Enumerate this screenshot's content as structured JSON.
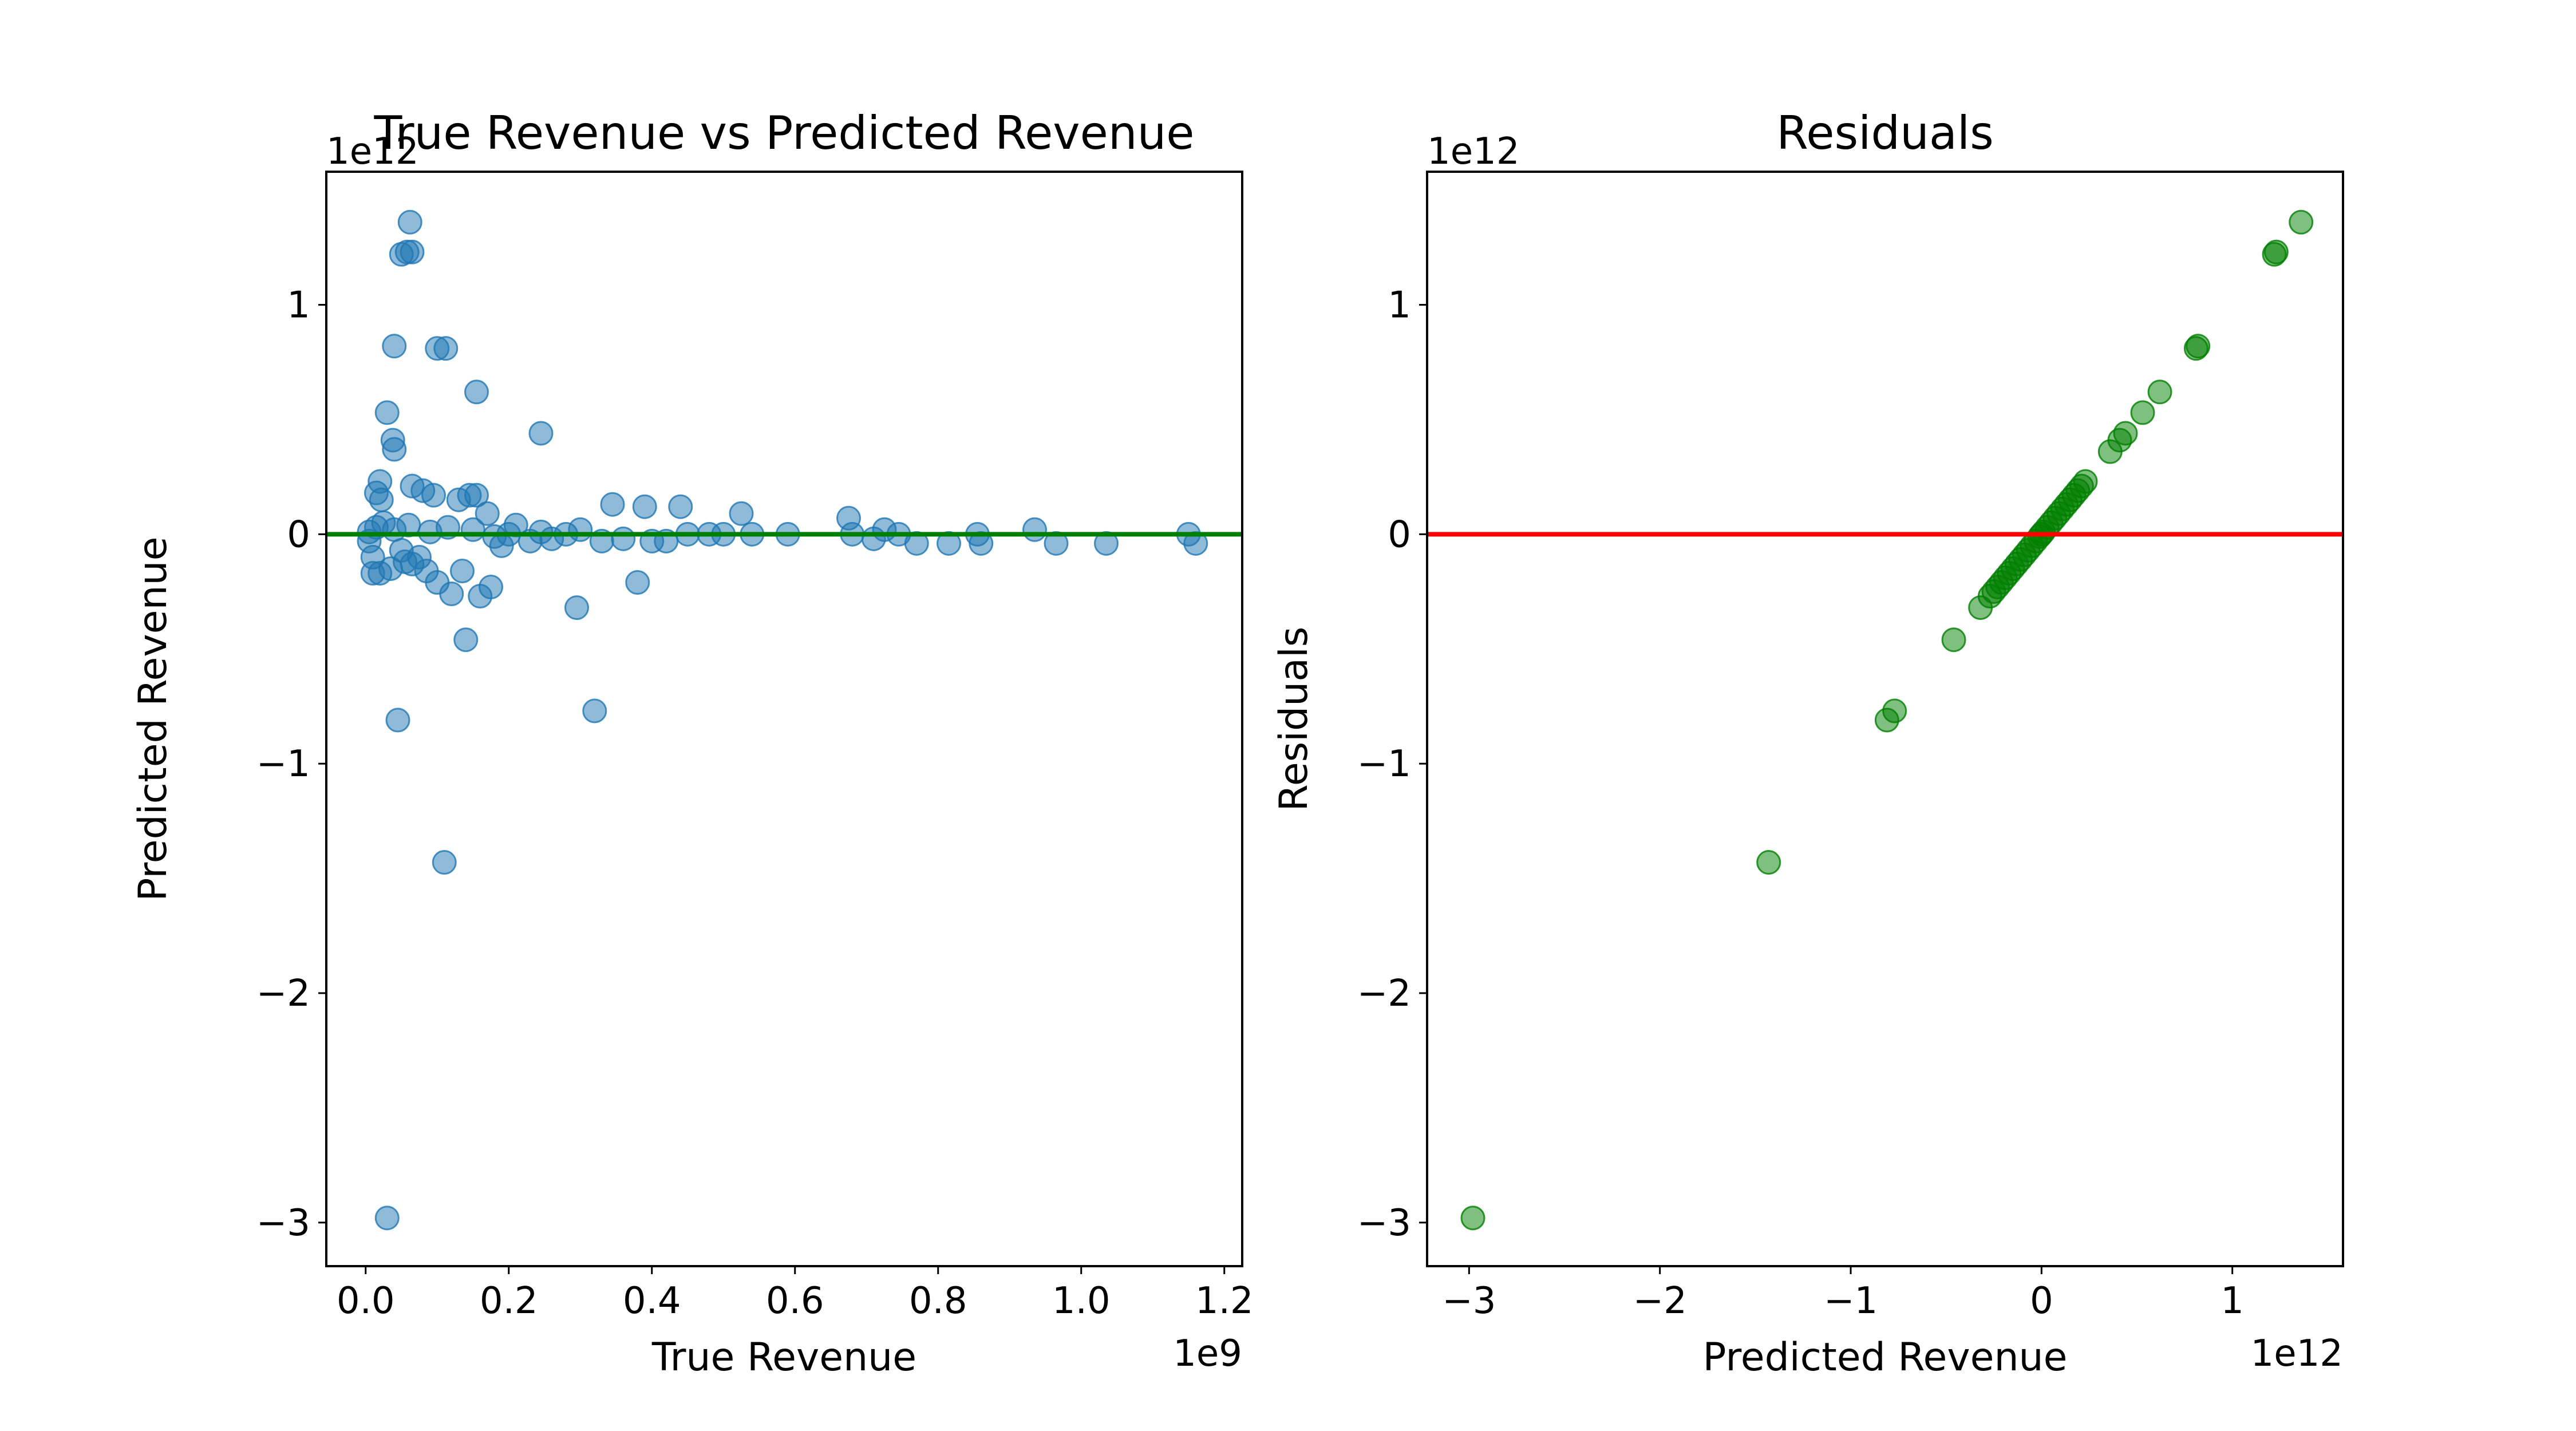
{
  "chart_data": [
    {
      "type": "scatter",
      "title": "True Revenue vs Predicted Revenue",
      "xlabel": "True Revenue",
      "ylabel": "Predicted Revenue",
      "x_offset_label": "1e9",
      "y_offset_label": "1e12",
      "xlim": [
        -0.055,
        1.225
      ],
      "ylim": [
        -3.19,
        1.58
      ],
      "x_ticks": [
        0.0,
        0.2,
        0.4,
        0.6,
        0.8,
        1.0,
        1.2
      ],
      "x_tick_labels": [
        "0.0",
        "0.2",
        "0.4",
        "0.6",
        "0.8",
        "1.0",
        "1.2"
      ],
      "y_ticks": [
        -3,
        -2,
        -1,
        0,
        1
      ],
      "y_tick_labels": [
        "−3",
        "−2",
        "−1",
        "0",
        "1"
      ],
      "marker_color": "#1f77b4",
      "marker_alpha": 0.5,
      "reference_line": {
        "y": 0,
        "color": "#008000"
      },
      "series": [
        {
          "points": [
            [
              0.03,
              -2.98
            ],
            [
              0.11,
              -1.43
            ],
            [
              0.045,
              -0.81
            ],
            [
              0.32,
              -0.77
            ],
            [
              0.14,
              -0.46
            ],
            [
              0.295,
              -0.32
            ],
            [
              0.12,
              -0.26
            ],
            [
              0.16,
              -0.27
            ],
            [
              0.175,
              -0.23
            ],
            [
              0.1,
              -0.21
            ],
            [
              0.38,
              -0.21
            ],
            [
              0.085,
              -0.16
            ],
            [
              0.135,
              -0.16
            ],
            [
              0.01,
              -0.17
            ],
            [
              0.02,
              -0.17
            ],
            [
              0.035,
              -0.15
            ],
            [
              0.055,
              -0.12
            ],
            [
              0.075,
              -0.1
            ],
            [
              0.19,
              -0.05
            ],
            [
              0.23,
              -0.03
            ],
            [
              0.26,
              -0.02
            ],
            [
              0.33,
              -0.03
            ],
            [
              0.36,
              -0.02
            ],
            [
              0.4,
              -0.03
            ],
            [
              0.42,
              -0.03
            ],
            [
              0.5,
              0.0
            ],
            [
              0.54,
              0.0
            ],
            [
              0.59,
              0.0
            ],
            [
              0.68,
              0.0
            ],
            [
              0.71,
              -0.02
            ],
            [
              0.77,
              -0.04
            ],
            [
              0.815,
              -0.04
            ],
            [
              0.86,
              -0.04
            ],
            [
              0.965,
              -0.04
            ],
            [
              1.035,
              -0.04
            ],
            [
              1.16,
              -0.04
            ],
            [
              1.15,
              0.0
            ],
            [
              0.935,
              0.02
            ],
            [
              0.855,
              0.0
            ],
            [
              0.745,
              0.0
            ],
            [
              0.725,
              0.02
            ],
            [
              0.675,
              0.07
            ],
            [
              0.525,
              0.09
            ],
            [
              0.44,
              0.12
            ],
            [
              0.39,
              0.12
            ],
            [
              0.345,
              0.13
            ],
            [
              0.3,
              0.02
            ],
            [
              0.245,
              0.01
            ],
            [
              0.21,
              0.04
            ],
            [
              0.005,
              -0.03
            ],
            [
              0.005,
              0.01
            ],
            [
              0.015,
              0.03
            ],
            [
              0.025,
              0.05
            ],
            [
              0.04,
              0.02
            ],
            [
              0.06,
              0.04
            ],
            [
              0.09,
              0.01
            ],
            [
              0.115,
              0.03
            ],
            [
              0.15,
              0.02
            ],
            [
              0.02,
              0.23
            ],
            [
              0.015,
              0.18
            ],
            [
              0.022,
              0.15
            ],
            [
              0.065,
              0.21
            ],
            [
              0.08,
              0.19
            ],
            [
              0.095,
              0.17
            ],
            [
              0.13,
              0.15
            ],
            [
              0.145,
              0.17
            ],
            [
              0.155,
              0.17
            ],
            [
              0.17,
              0.09
            ],
            [
              0.03,
              0.53
            ],
            [
              0.038,
              0.41
            ],
            [
              0.04,
              0.37
            ],
            [
              0.245,
              0.44
            ],
            [
              0.155,
              0.62
            ],
            [
              0.04,
              0.82
            ],
            [
              0.1,
              0.81
            ],
            [
              0.112,
              0.81
            ],
            [
              0.05,
              1.22
            ],
            [
              0.058,
              1.23
            ],
            [
              0.065,
              1.23
            ],
            [
              0.062,
              1.36
            ],
            [
              0.48,
              0.0
            ],
            [
              0.45,
              0.0
            ],
            [
              0.28,
              0.0
            ],
            [
              0.2,
              0.0
            ],
            [
              0.18,
              -0.01
            ],
            [
              0.05,
              -0.07
            ],
            [
              0.065,
              -0.13
            ],
            [
              0.01,
              -0.1
            ]
          ]
        }
      ]
    },
    {
      "type": "scatter",
      "title": "Residuals",
      "xlabel": "Predicted Revenue",
      "ylabel": "Residuals",
      "x_offset_label": "1e12",
      "y_offset_label": "1e12",
      "xlim": [
        -3.22,
        1.58
      ],
      "ylim": [
        -3.19,
        1.58
      ],
      "x_ticks": [
        -3,
        -2,
        -1,
        0,
        1
      ],
      "x_tick_labels": [
        "−3",
        "−2",
        "−1",
        "0",
        "1"
      ],
      "y_ticks": [
        -3,
        -2,
        -1,
        0,
        1
      ],
      "y_tick_labels": [
        "−3",
        "−2",
        "−1",
        "0",
        "1"
      ],
      "marker_color": "#008000",
      "marker_alpha": 0.5,
      "reference_line": {
        "y": 0,
        "color": "#ff0000"
      },
      "series": [
        {
          "points": [
            [
              -2.98,
              -2.98
            ],
            [
              -1.43,
              -1.43
            ],
            [
              -0.81,
              -0.81
            ],
            [
              -0.77,
              -0.77
            ],
            [
              -0.46,
              -0.46
            ],
            [
              -0.32,
              -0.32
            ],
            [
              -0.27,
              -0.27
            ],
            [
              -0.25,
              -0.25
            ],
            [
              -0.23,
              -0.23
            ],
            [
              -0.21,
              -0.21
            ],
            [
              -0.19,
              -0.19
            ],
            [
              -0.17,
              -0.17
            ],
            [
              -0.15,
              -0.15
            ],
            [
              -0.13,
              -0.13
            ],
            [
              -0.11,
              -0.11
            ],
            [
              -0.09,
              -0.09
            ],
            [
              -0.07,
              -0.07
            ],
            [
              -0.05,
              -0.05
            ],
            [
              -0.03,
              -0.03
            ],
            [
              -0.01,
              -0.01
            ],
            [
              0.0,
              0.0
            ],
            [
              0.01,
              0.01
            ],
            [
              0.03,
              0.03
            ],
            [
              0.05,
              0.05
            ],
            [
              0.07,
              0.07
            ],
            [
              0.09,
              0.09
            ],
            [
              0.11,
              0.11
            ],
            [
              0.13,
              0.13
            ],
            [
              0.15,
              0.15
            ],
            [
              0.17,
              0.17
            ],
            [
              0.19,
              0.19
            ],
            [
              0.21,
              0.21
            ],
            [
              0.23,
              0.23
            ],
            [
              0.36,
              0.36
            ],
            [
              0.41,
              0.41
            ],
            [
              0.44,
              0.44
            ],
            [
              0.53,
              0.53
            ],
            [
              0.62,
              0.62
            ],
            [
              0.81,
              0.81
            ],
            [
              0.82,
              0.82
            ],
            [
              1.22,
              1.22
            ],
            [
              1.23,
              1.23
            ],
            [
              1.36,
              1.36
            ]
          ]
        }
      ]
    }
  ]
}
